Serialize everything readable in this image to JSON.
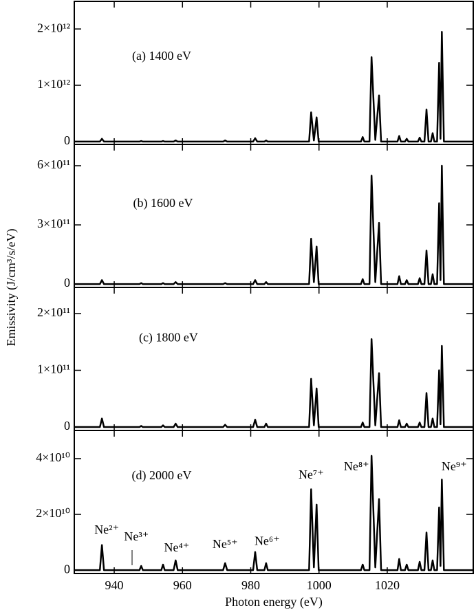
{
  "chart_data": [
    {
      "type": "line",
      "color": "#000000",
      "ylabel": "Emissivity (J/cm³/s/eV)",
      "xlim": [
        928.3,
        1045.2
      ],
      "xticks": [
        940,
        960,
        980,
        1000,
        1020
      ],
      "ylim": [
        -50000000000.0,
        2490000000000.0
      ],
      "yticks": [
        0,
        {
          "value": 1000000000000.0,
          "label": "1×10¹²"
        },
        {
          "value": 2000000000000.0,
          "label": "2×10¹²"
        }
      ],
      "annotations": [
        {
          "text": "(a) 1400 eV",
          "x": 953.9,
          "y": 1500000000000.0
        }
      ],
      "x": [
        928.3,
        935.8,
        936.4,
        937.0,
        947.4,
        947.9,
        948.4,
        953.8,
        954.3,
        954.8,
        957.4,
        958,
        958.6,
        971.9,
        972.5,
        973.1,
        980.7,
        981.3,
        981.9,
        984.0,
        984.5,
        985.0,
        997.1,
        997.7,
        998.5,
        999.3,
        999.9,
        1012.3,
        1012.8,
        1013.3,
        1014.8,
        1015.4,
        1016.5,
        1017.6,
        1018.2,
        1023.0,
        1023.5,
        1024.0,
        1025.2,
        1025.7,
        1026.2,
        1029.0,
        1029.5,
        1030.0,
        1030.9,
        1031.5,
        1032.1,
        1032.8,
        1033.3,
        1033.8,
        1034.6,
        1035.2,
        1035.6,
        1036,
        1036.6,
        1045.2
      ],
      "values": [
        0,
        0,
        50000000000.0,
        0,
        0,
        10000000000.0,
        0,
        0,
        10000000000.0,
        0,
        0,
        20000000000.0,
        0,
        0,
        20000000000.0,
        0,
        0,
        60000000000.0,
        0,
        0,
        20000000000.0,
        0,
        0,
        520000000000.0,
        20000000000.0,
        430000000000.0,
        0,
        0,
        80000000000.0,
        0,
        0,
        1500000000000.0,
        30000000000.0,
        820000000000.0,
        0,
        0,
        100000000000.0,
        0,
        0,
        50000000000.0,
        0,
        0,
        70000000000.0,
        0,
        0,
        570000000000.0,
        0,
        0,
        150000000000.0,
        0,
        0,
        1400000000000.0,
        50000000000.0,
        1950000000000.0,
        0,
        0
      ]
    },
    {
      "type": "line",
      "color": "#000000",
      "xlim": [
        928.3,
        1045.2
      ],
      "xticks": [
        940,
        960,
        980,
        1000,
        1020
      ],
      "ylim": [
        -17000000000.0,
        708000000000.0
      ],
      "yticks": [
        0,
        {
          "value": 300000000000.0,
          "label": "3×10¹¹"
        },
        {
          "value": 600000000000.0,
          "label": "6×10¹¹"
        }
      ],
      "annotations": [
        {
          "text": "(b) 1600 eV",
          "x": 954.3,
          "y": 405000000000.0
        }
      ],
      "x": [
        928.3,
        935.8,
        936.4,
        937.0,
        947.4,
        947.9,
        948.4,
        953.8,
        954.3,
        954.8,
        957.4,
        958,
        958.6,
        971.9,
        972.5,
        973.1,
        980.7,
        981.3,
        981.9,
        984.0,
        984.5,
        985.0,
        997.1,
        997.7,
        998.5,
        999.3,
        999.9,
        1012.3,
        1012.8,
        1013.3,
        1014.8,
        1015.4,
        1016.5,
        1017.6,
        1018.2,
        1023.0,
        1023.5,
        1024.0,
        1025.2,
        1025.7,
        1026.2,
        1029.0,
        1029.5,
        1030.0,
        1030.9,
        1031.5,
        1032.1,
        1032.8,
        1033.3,
        1033.8,
        1034.6,
        1035.2,
        1035.6,
        1036,
        1036.6,
        1045.2
      ],
      "values": [
        0,
        0,
        20000000000.0,
        0,
        0,
        5000000000.0,
        0,
        0,
        5000000000.0,
        0,
        0,
        10000000000.0,
        0,
        0,
        5000000000.0,
        0,
        0,
        20000000000.0,
        0,
        0,
        10000000000.0,
        0,
        0,
        230000000000.0,
        10000000000.0,
        190000000000.0,
        0,
        0,
        25000000000.0,
        0,
        0,
        550000000000.0,
        10000000000.0,
        310000000000.0,
        0,
        0,
        40000000000.0,
        0,
        0,
        20000000000.0,
        0,
        0,
        30000000000.0,
        0,
        0,
        170000000000.0,
        0,
        0,
        50000000000.0,
        0,
        0,
        410000000000.0,
        20000000000.0,
        600000000000.0,
        0,
        0
      ]
    },
    {
      "type": "line",
      "color": "#000000",
      "xlim": [
        928.3,
        1045.2
      ],
      "xticks": [
        940,
        960,
        980,
        1000,
        1020
      ],
      "ylim": [
        -6000000000.0,
        246000000000.0
      ],
      "yticks": [
        0,
        {
          "value": 100000000000.0,
          "label": "1×10¹¹"
        },
        {
          "value": 200000000000.0,
          "label": "2×10¹¹"
        }
      ],
      "annotations": [
        {
          "text": "(c) 1800 eV",
          "x": 955.9,
          "y": 156000000000.0
        }
      ],
      "x": [
        928.3,
        935.8,
        936.4,
        937.0,
        947.4,
        947.9,
        948.4,
        953.8,
        954.3,
        954.8,
        957.4,
        958,
        958.6,
        971.9,
        972.5,
        973.1,
        980.7,
        981.3,
        981.9,
        984.0,
        984.5,
        985.0,
        997.1,
        997.7,
        998.5,
        999.3,
        999.9,
        1012.3,
        1012.8,
        1013.3,
        1014.8,
        1015.4,
        1016.5,
        1017.6,
        1018.2,
        1023.0,
        1023.5,
        1024.0,
        1025.2,
        1025.7,
        1026.2,
        1029.0,
        1029.5,
        1030.0,
        1030.9,
        1031.5,
        1032.1,
        1032.8,
        1033.3,
        1033.8,
        1034.6,
        1035.2,
        1035.6,
        1036,
        1036.6,
        1045.2
      ],
      "values": [
        0,
        0,
        15000000000.0,
        0,
        0,
        2000000000.0,
        0,
        0,
        3000000000.0,
        0,
        0,
        6000000000.0,
        0,
        0,
        4000000000.0,
        0,
        0,
        13000000000.0,
        0,
        0,
        6000000000.0,
        0,
        0,
        85000000000.0,
        3000000000.0,
        68000000000.0,
        0,
        0,
        8000000000.0,
        0,
        0,
        155000000000.0,
        3000000000.0,
        95000000000.0,
        0,
        0,
        12000000000.0,
        0,
        0,
        6000000000.0,
        0,
        0,
        8000000000.0,
        0,
        0,
        60000000000.0,
        0,
        0,
        15000000000.0,
        0,
        0,
        100000000000.0,
        5000000000.0,
        143000000000.0,
        0,
        0
      ]
    },
    {
      "type": "line",
      "color": "#000000",
      "xlabel": "Photon energy (eV)",
      "xlim": [
        928.3,
        1045.2
      ],
      "xticks": [
        940,
        960,
        980,
        1000,
        1020
      ],
      "ylim": [
        -1200000000.0,
        50100000000.0
      ],
      "yticks": [
        0,
        {
          "value": 20000000000.0,
          "label": "2×10¹⁰"
        },
        {
          "value": 40000000000.0,
          "label": "4×10¹⁰"
        }
      ],
      "annotations": [
        {
          "text": "(d) 2000 eV",
          "x": 953.9,
          "y": 33600000000.0
        },
        {
          "text": "Ne²⁺",
          "x": 937.8,
          "y": 14100000000.0
        },
        {
          "text": "Ne³⁺",
          "x": 946.5,
          "y": 11600000000.0
        },
        {
          "text": "Ne⁴⁺",
          "x": 958.3,
          "y": 7700000000.0
        },
        {
          "text": "Ne⁵⁺",
          "x": 972.5,
          "y": 8900000000.0
        },
        {
          "text": "Ne⁶⁺",
          "x": 984.8,
          "y": 10100000000.0
        },
        {
          "text": "Ne⁷⁺",
          "x": 997.7,
          "y": 33800000000.0
        },
        {
          "text": "Ne⁸⁺",
          "x": 1011,
          "y": 36800000000.0
        },
        {
          "text": "Ne⁹⁺",
          "x": 1039.6,
          "y": 36800000000.0
        }
      ],
      "x": [
        928.3,
        935.8,
        936.4,
        937.0,
        947.4,
        947.9,
        948.4,
        953.8,
        954.3,
        954.8,
        957.4,
        958,
        958.6,
        971.9,
        972.5,
        973.1,
        980.7,
        981.3,
        981.9,
        984.0,
        984.5,
        985.0,
        997.1,
        997.7,
        998.5,
        999.3,
        999.9,
        1012.3,
        1012.8,
        1013.3,
        1014.8,
        1015.4,
        1016.5,
        1017.6,
        1018.2,
        1023.0,
        1023.5,
        1024.0,
        1025.2,
        1025.7,
        1026.2,
        1029.0,
        1029.5,
        1030.0,
        1030.9,
        1031.5,
        1032.1,
        1032.8,
        1033.3,
        1033.8,
        1034.6,
        1035.2,
        1035.6,
        1036,
        1036.6,
        1045.2
      ],
      "values": [
        0,
        0,
        9000000000.0,
        0,
        0,
        1500000000.0,
        0,
        0,
        2000000000.0,
        0,
        0,
        3500000000.0,
        0,
        0,
        2500000000.0,
        0,
        0,
        6500000000.0,
        0,
        0,
        2500000000.0,
        0,
        0,
        29000000000.0,
        1000000000.0,
        23500000000.0,
        0,
        0,
        2000000000.0,
        0,
        0,
        41000000000.0,
        1000000000.0,
        25500000000.0,
        0,
        0,
        4000000000.0,
        0,
        0,
        2000000000.0,
        0,
        0,
        3000000000.0,
        0,
        0,
        13500000000.0,
        0,
        0,
        3500000000.0,
        0,
        0,
        22500000000.0,
        1500000000.0,
        32500000000.0,
        0,
        0
      ]
    }
  ]
}
